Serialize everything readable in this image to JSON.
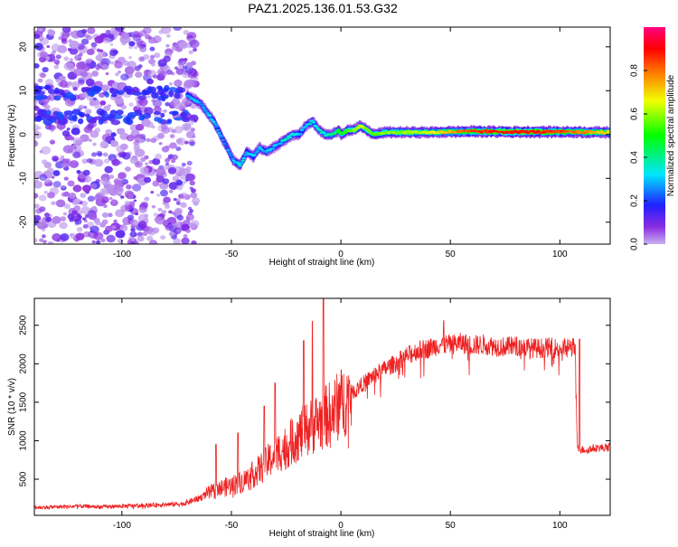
{
  "title": "PAZ1.2025.136.01.53.G32",
  "chart_data": [
    {
      "type": "heatmap",
      "xlabel": "Height of straight line (km)",
      "ylabel": "Frequency (Hz)",
      "xlim": [
        -140,
        123
      ],
      "ylim": [
        -25,
        24.5
      ],
      "xticks": [
        "-100",
        "-50",
        "0",
        "50",
        "100"
      ],
      "xtick_values": [
        -100,
        -50,
        0,
        50,
        100
      ],
      "yticks": [
        "20",
        "10",
        "0",
        "-10",
        "-20"
      ],
      "ytick_values": [
        20,
        10,
        0,
        -10,
        -20
      ],
      "colorbar": {
        "label": "Normalized spectral amplitude",
        "range": [
          0,
          1
        ],
        "ticks": [
          "0.0",
          "0.2",
          "0.4",
          "0.6",
          "0.8"
        ],
        "tick_values": [
          0.0,
          0.2,
          0.4,
          0.6,
          0.8
        ],
        "colormap": "rainbow (purple-blue-cyan-green-yellow-red-magenta)"
      },
      "ridge": {
        "x": [
          -70,
          -67,
          -64,
          -61,
          -58,
          -55,
          -52,
          -49,
          -46,
          -43,
          -40,
          -37,
          -34,
          -31,
          -28,
          -25,
          -22,
          -19,
          -16,
          -13,
          -10,
          -7,
          -4,
          -1,
          0,
          3,
          6,
          9,
          12,
          15,
          20,
          30,
          40,
          60,
          80,
          100,
          123
        ],
        "y": [
          9,
          8,
          7,
          5,
          3,
          0,
          -3,
          -6,
          -7,
          -4,
          -5,
          -3,
          -4,
          -3,
          -2,
          -1,
          0,
          0,
          2,
          3,
          1,
          0,
          0,
          1,
          0,
          1,
          1,
          2,
          1,
          0,
          0.5,
          0.5,
          0.5,
          0.7,
          0.6,
          0.6,
          0.5
        ],
        "amplitude": [
          0.3,
          0.3,
          0.25,
          0.3,
          0.3,
          0.3,
          0.25,
          0.3,
          0.35,
          0.3,
          0.3,
          0.3,
          0.3,
          0.3,
          0.3,
          0.4,
          0.35,
          0.3,
          0.3,
          0.35,
          0.35,
          0.35,
          0.4,
          0.45,
          0.5,
          0.55,
          0.6,
          0.65,
          0.6,
          0.55,
          0.6,
          0.6,
          0.65,
          0.85,
          0.9,
          0.85,
          0.7
        ]
      },
      "noise_x_range": [
        -140,
        -70
      ]
    },
    {
      "type": "line",
      "xlabel": "Height of straight line (km)",
      "ylabel": "SNR (10 * v/v)",
      "xlim": [
        -140,
        123
      ],
      "ylim": [
        30,
        2850
      ],
      "xticks": [
        "-100",
        "-50",
        "0",
        "50",
        "100"
      ],
      "xtick_values": [
        -100,
        -50,
        0,
        50,
        100
      ],
      "yticks": [
        "500",
        "1000",
        "1500",
        "2000",
        "2500"
      ],
      "ytick_values": [
        500,
        1000,
        1500,
        2000,
        2500
      ],
      "color": "#ee2222",
      "series": [
        {
          "x": [
            -140,
            -130,
            -120,
            -110,
            -100,
            -90,
            -80,
            -72,
            -65,
            -60,
            -55,
            -50,
            -45,
            -40,
            -35,
            -30,
            -25,
            -20,
            -15,
            -10,
            -5,
            0,
            5,
            10,
            15,
            20,
            25,
            30,
            35,
            40,
            45,
            50,
            55,
            60,
            65,
            70,
            75,
            80,
            85,
            90,
            95,
            100,
            105,
            107,
            108,
            110,
            115,
            120,
            123
          ],
          "y": [
            130,
            140,
            150,
            140,
            150,
            160,
            170,
            180,
            250,
            320,
            380,
            420,
            470,
            560,
            680,
            820,
            920,
            1050,
            1150,
            1260,
            1350,
            1480,
            1620,
            1740,
            1850,
            1930,
            2010,
            2100,
            2170,
            2200,
            2250,
            2250,
            2270,
            2240,
            2250,
            2230,
            2220,
            2230,
            2210,
            2200,
            2210,
            2200,
            2220,
            2200,
            900,
            880,
            900,
            910,
            920
          ]
        }
      ],
      "spikes": {
        "x": [
          -57,
          -47,
          -35,
          -30,
          -17,
          -13,
          -8,
          47,
          109
        ],
        "y": [
          950,
          1100,
          1450,
          1750,
          2300,
          2550,
          2850,
          2560,
          2320
        ]
      }
    }
  ]
}
